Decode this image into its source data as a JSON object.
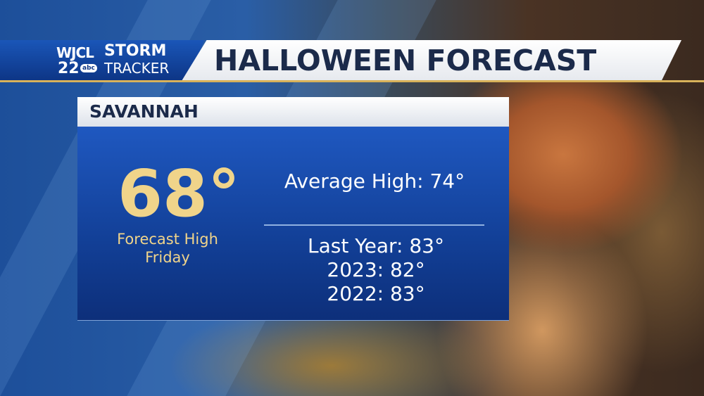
{
  "header": {
    "logo": {
      "call_sign": "WJCL",
      "channel": "22",
      "network": "abc",
      "brand_top": "STORM",
      "brand_bottom": "TRACKER"
    },
    "title": "HALLOWEEN FORECAST"
  },
  "panel": {
    "location": "SAVANNAH",
    "forecast": {
      "temperature": "68°",
      "label_line1": "Forecast High",
      "label_line2": "Friday"
    },
    "average": "Average High: 74°",
    "history": [
      "Last Year: 83°",
      "2023: 82°",
      "2022: 83°"
    ]
  }
}
